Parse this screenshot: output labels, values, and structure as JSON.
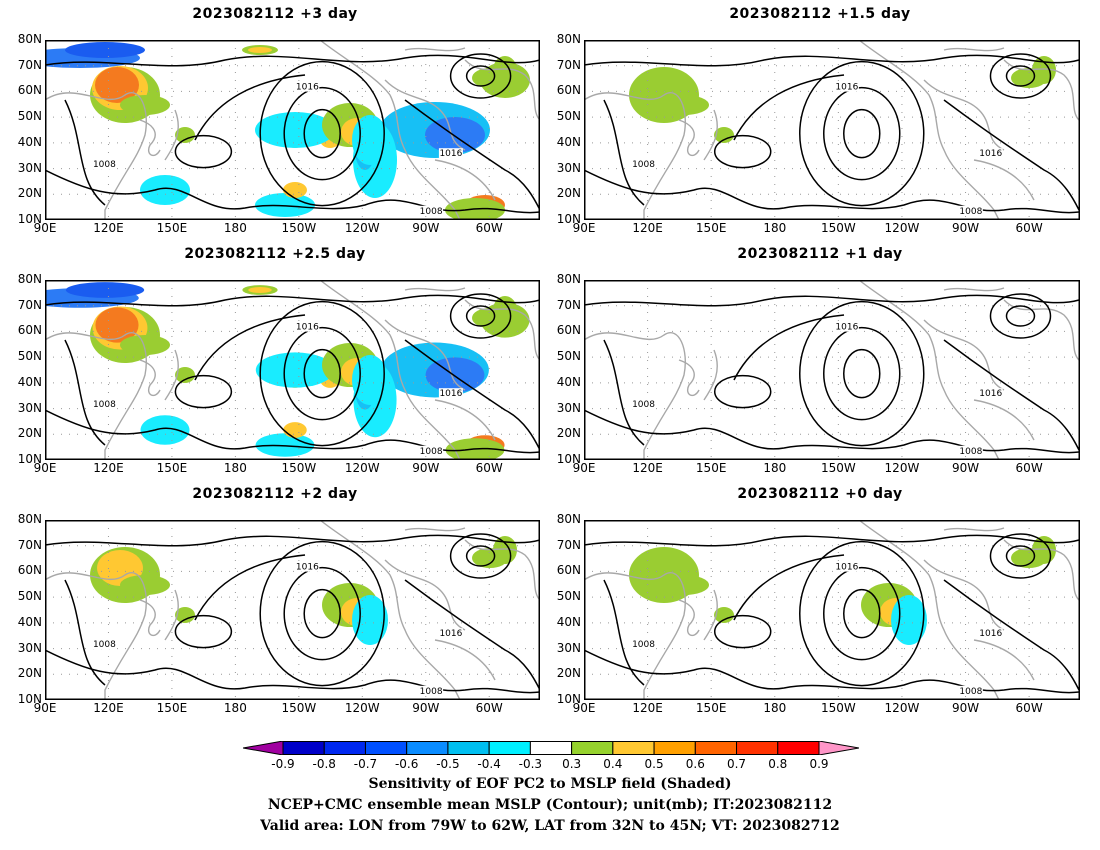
{
  "panels": [
    {
      "title": "2023082112 +3 day",
      "intensity": 1.0
    },
    {
      "title": "2023082112 +1.5 day",
      "intensity": 0.35
    },
    {
      "title": "2023082112 +2.5 day",
      "intensity": 0.95
    },
    {
      "title": "2023082112 +1 day",
      "intensity": 0.08
    },
    {
      "title": "2023082112 +2 day",
      "intensity": 0.55
    },
    {
      "title": "2023082112 +0 day",
      "intensity": 0.4
    }
  ],
  "lat_ticks": [
    "80N",
    "70N",
    "60N",
    "50N",
    "40N",
    "30N",
    "20N",
    "10N"
  ],
  "lon_ticks": [
    "90E",
    "120E",
    "150E",
    "180",
    "150W",
    "120W",
    "90W",
    "60W"
  ],
  "contour_labels": {
    "low": "1008",
    "high": "1016"
  },
  "colorbar": {
    "ticks": [
      "-0.9",
      "-0.8",
      "-0.7",
      "-0.6",
      "-0.5",
      "-0.4",
      "-0.3",
      "0.3",
      "0.4",
      "0.5",
      "0.6",
      "0.7",
      "0.8",
      "0.9"
    ],
    "colors": [
      "#a000a0",
      "#0000c8",
      "#0028f0",
      "#0050ff",
      "#0a8cff",
      "#00bff0",
      "#00f0ff",
      "#ffffff",
      "#96d22d",
      "#ffc832",
      "#ffa000",
      "#ff6400",
      "#ff3200",
      "#ff0000",
      "#ff96c8"
    ]
  },
  "caption": [
    "Sensitivity of EOF PC2 to MSLP field (Shaded)",
    "NCEP+CMC ensemble mean MSLP (Contour); unit(mb); IT:2023082112",
    "Valid area: LON from 79W to 62W, LAT from 32N to 45N; VT: 2023082712"
  ]
}
